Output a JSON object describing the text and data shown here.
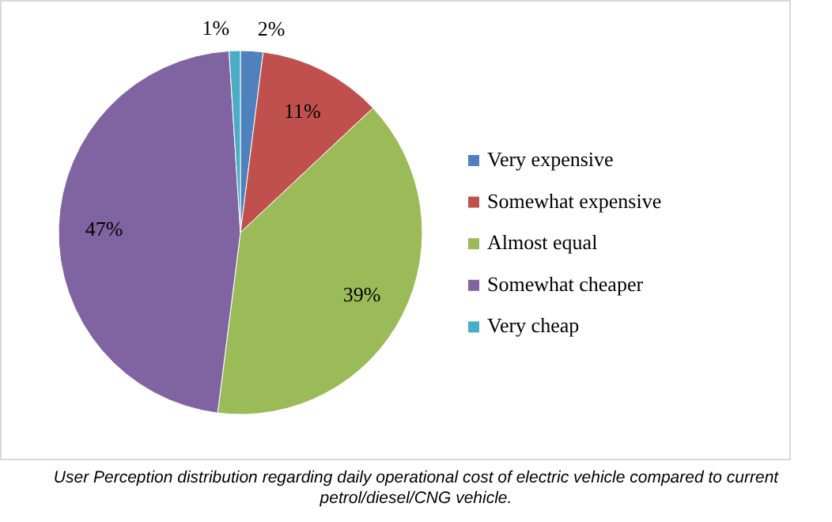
{
  "chart_data": {
    "type": "pie",
    "categories": [
      "Very expensive",
      "Somewhat expensive",
      "Almost equal",
      "Somewhat cheaper",
      "Very cheap"
    ],
    "values": [
      2,
      11,
      39,
      47,
      1
    ],
    "colors": [
      "#4f81bd",
      "#c0504d",
      "#9bbb59",
      "#8064a2",
      "#4bacc6"
    ],
    "value_labels": [
      "2%",
      "11%",
      "39%",
      "47%",
      "1%"
    ],
    "legend": "right",
    "annotations": [
      "User Perception distribution regarding daily operational cost of electric vehicle compared to current petrol/diesel/CNG vehicle."
    ]
  }
}
